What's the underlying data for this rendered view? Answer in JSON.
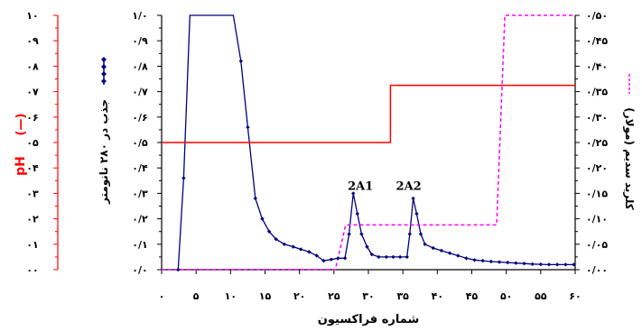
{
  "chart_data": {
    "type": "line",
    "x": {
      "label": "شماره فراكسيون",
      "range": [
        0,
        60
      ],
      "tick_labels": [
        "۰",
        "۵",
        "۱۰",
        "۱۵",
        "۲۰",
        "۲۵",
        "۳۰",
        "۳۵",
        "۴۰",
        "۴۵",
        "۵۰",
        "۵۵",
        "۶۰"
      ]
    },
    "y_left_outer": {
      "label": "pH",
      "legend_symbol": "(—)",
      "color": "#ff0000",
      "range": [
        0,
        10
      ],
      "tick_labels": [
        "۰۰",
        "۰۱",
        "۰۲",
        "۰۳",
        "۰۴",
        "۰۵",
        "۰۶",
        "۰۷",
        "۰۸",
        "۰۹",
        "۱۰"
      ]
    },
    "y_left_inner": {
      "label": "جذب در ۲۸۰ نانومتر",
      "color": "#000080",
      "range": [
        0,
        1.0
      ],
      "tick_labels": [
        "۰/۰",
        "۰/۱",
        "۰/۲",
        "۰/۳",
        "۰/۴",
        "۰/۵",
        "۰/۶",
        "۰/۷",
        "۰/۸",
        "۰/۹",
        "۱/۰"
      ]
    },
    "y_right": {
      "label": "كلريد سديم (مولار)",
      "color": "#ff00ff",
      "range": [
        0,
        0.5
      ],
      "tick_labels": [
        "۰/۰۰",
        "۰/۰۵",
        "۰/۱۰",
        "۰/۱۵",
        "۰/۲۰",
        "۰/۲۵",
        "۰/۳۰",
        "۰/۳۵",
        "۰/۴۰",
        "۰/۴۵",
        "۰/۵۰"
      ]
    },
    "annotations": [
      {
        "text": "2A1",
        "x": 27,
        "y": 0.3
      },
      {
        "text": "2A2",
        "x": 34,
        "y": 0.3
      }
    ],
    "series": [
      {
        "id": "absorbance",
        "axis": "y_left_inner",
        "color": "#000080",
        "marker": "diamond",
        "x": [
          2.4,
          3.2,
          4.1,
          5,
          10.4,
          11.5,
          12.5,
          13.6,
          14.6,
          15.6,
          16.6,
          17.8,
          19.1,
          20.2,
          21.4,
          22.5,
          23.5,
          24.6,
          25.6,
          26.6,
          27.2,
          27.8,
          28.4,
          29,
          29.8,
          30.5,
          31.5,
          32.6,
          33.6,
          34.6,
          35.6,
          36,
          36.5,
          37,
          37.6,
          38.2,
          39.4,
          40.6,
          41.8,
          43,
          44.2,
          45.4,
          46.6,
          47.8,
          49,
          50.2,
          51.4,
          52.6,
          53.8,
          55,
          56.2,
          57.4,
          58.6,
          59.8
        ],
        "y": [
          0,
          0.36,
          1.0,
          1.0,
          1.0,
          0.82,
          0.56,
          0.28,
          0.2,
          0.15,
          0.12,
          0.1,
          0.09,
          0.08,
          0.07,
          0.055,
          0.035,
          0.04,
          0.045,
          0.045,
          0.14,
          0.3,
          0.22,
          0.14,
          0.09,
          0.06,
          0.05,
          0.05,
          0.05,
          0.05,
          0.05,
          0.14,
          0.28,
          0.22,
          0.14,
          0.1,
          0.085,
          0.075,
          0.065,
          0.055,
          0.045,
          0.038,
          0.035,
          0.032,
          0.03,
          0.028,
          0.026,
          0.024,
          0.022,
          0.021,
          0.02,
          0.02,
          0.02,
          0.02
        ]
      },
      {
        "id": "ph",
        "axis": "y_left_outer",
        "color": "#ff0000",
        "marker": "none",
        "x": [
          0,
          33.2,
          33.2,
          60
        ],
        "y": [
          5.0,
          5.0,
          7.25,
          7.25
        ]
      },
      {
        "id": "nacl",
        "axis": "y_right",
        "color": "#ff00ff",
        "marker": "none",
        "dashed": true,
        "x": [
          0,
          25.2,
          26.7,
          48.6,
          49.8,
          60
        ],
        "y": [
          0,
          0,
          0.088,
          0.088,
          0.5,
          0.5
        ]
      }
    ]
  }
}
